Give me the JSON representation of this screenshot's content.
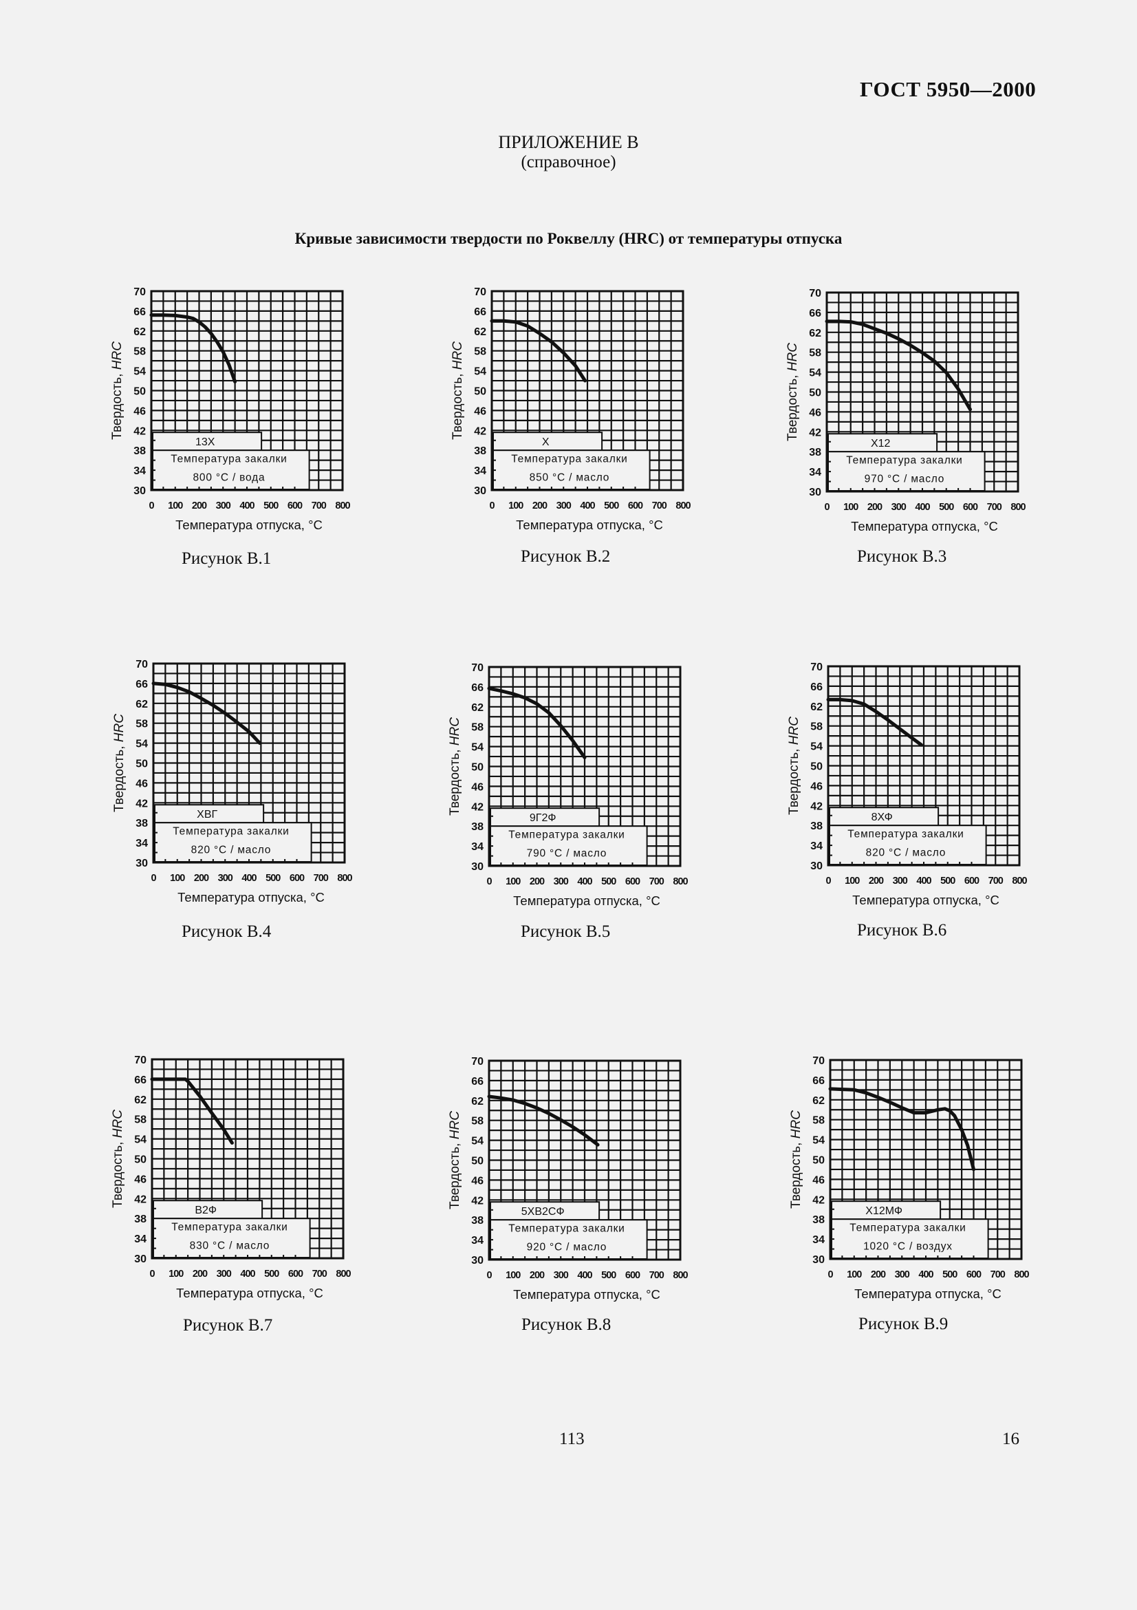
{
  "header": {
    "doc_code": "ГОСТ 5950—2000",
    "appendix_title": "ПРИЛОЖЕНИЕ В",
    "appendix_subtitle": "(справочное)",
    "main_title": "Кривые зависимости твердости по Роквеллу (HRC) от температуры отпуска"
  },
  "footer": {
    "page_number": "113",
    "sheet_number": "16"
  },
  "axes": {
    "ylabel_prefix": "Твердость, ",
    "ylabel_unit": "HRC",
    "xlabel": "Температура отпуска, °C",
    "quench_label": "Температура закалки",
    "yticks": [
      30,
      34,
      38,
      42,
      46,
      50,
      54,
      58,
      62,
      66,
      70
    ],
    "xticks": [
      0,
      100,
      200,
      300,
      400,
      500,
      600,
      700,
      800
    ]
  },
  "chart_data": [
    {
      "type": "line",
      "figure": "Рисунок В.1",
      "title": "13X",
      "steel": "13X",
      "quench": "800 °C / вода",
      "xlabel": "Температура отпуска, °C",
      "ylabel": "Твердость, HRC",
      "xlim": [
        0,
        800
      ],
      "ylim": [
        30,
        70
      ],
      "grid": true,
      "x": [
        0,
        50,
        100,
        150,
        175,
        200,
        225,
        250,
        275,
        300,
        325,
        350
      ],
      "y": [
        65.2,
        65.2,
        65.1,
        64.8,
        64.5,
        63.8,
        62.8,
        61.5,
        59.8,
        57.8,
        55.2,
        51.8
      ]
    },
    {
      "type": "line",
      "figure": "Рисунок В.2",
      "title": "X",
      "steel": "X",
      "quench": "850 °C / масло",
      "xlabel": "Температура отпуска, °C",
      "ylabel": "Твердость, HRC",
      "xlim": [
        0,
        800
      ],
      "ylim": [
        30,
        70
      ],
      "grid": true,
      "x": [
        0,
        50,
        100,
        150,
        200,
        250,
        300,
        350,
        390
      ],
      "y": [
        64,
        64,
        63.8,
        63,
        61.5,
        59.8,
        57.6,
        55,
        52
      ]
    },
    {
      "type": "line",
      "figure": "Рисунок В.3",
      "title": "X12",
      "steel": "X12",
      "quench": "970 °C / масло",
      "xlabel": "Температура отпуска, °C",
      "ylabel": "Твердость, HRC",
      "xlim": [
        0,
        800
      ],
      "ylim": [
        30,
        70
      ],
      "grid": true,
      "x": [
        0,
        50,
        100,
        150,
        200,
        250,
        300,
        350,
        400,
        450,
        500,
        550,
        600
      ],
      "y": [
        64.2,
        64.2,
        64.1,
        63.6,
        62.7,
        61.8,
        60.7,
        59.4,
        57.9,
        56.2,
        53.9,
        50.6,
        46.5
      ]
    },
    {
      "type": "line",
      "figure": "Рисунок В.4",
      "title": "ХВГ",
      "steel": "ХВГ",
      "quench": "820 °C / масло",
      "xlabel": "Температура отпуска, °C",
      "ylabel": "Твердость, HRC",
      "xlim": [
        0,
        800
      ],
      "ylim": [
        30,
        70
      ],
      "grid": true,
      "x": [
        0,
        50,
        100,
        150,
        200,
        250,
        300,
        350,
        400,
        445
      ],
      "y": [
        66,
        65.8,
        65.2,
        64.3,
        63,
        61.6,
        60,
        58.2,
        56.3,
        54
      ]
    },
    {
      "type": "line",
      "figure": "Рисунок В.5",
      "title": "9Г2Ф",
      "steel": "9Г2Ф",
      "quench": "790 °C / масло",
      "xlabel": "Температура отпуска, °C",
      "ylabel": "Твердость, HRC",
      "xlim": [
        0,
        800
      ],
      "ylim": [
        30,
        70
      ],
      "grid": true,
      "x": [
        0,
        50,
        100,
        150,
        200,
        250,
        300,
        350,
        400
      ],
      "y": [
        65.7,
        65.2,
        64.6,
        63.8,
        62.6,
        60.8,
        58.2,
        55.2,
        51.8
      ]
    },
    {
      "type": "line",
      "figure": "Рисунок В.6",
      "title": "8ХФ",
      "steel": "8ХФ",
      "quench": "820 °C / масло",
      "xlabel": "Температура отпуска, °C",
      "ylabel": "Твердость, HRC",
      "xlim": [
        0,
        800
      ],
      "ylim": [
        30,
        70
      ],
      "grid": true,
      "x": [
        0,
        50,
        100,
        150,
        200,
        250,
        300,
        350,
        390
      ],
      "y": [
        63.3,
        63.3,
        63.1,
        62.4,
        60.9,
        59.2,
        57.4,
        55.6,
        54.2
      ]
    },
    {
      "type": "line",
      "figure": "Рисунок В.7",
      "title": "В2Ф",
      "steel": "В2Ф",
      "quench": "830 °C / масло",
      "xlabel": "Температура отпуска, °C",
      "ylabel": "Твердость, HRC",
      "xlim": [
        0,
        800
      ],
      "ylim": [
        30,
        70
      ],
      "grid": true,
      "x": [
        0,
        140,
        150,
        200,
        250,
        300,
        335
      ],
      "y": [
        66,
        66,
        65.6,
        62.6,
        59.2,
        55.9,
        53.2
      ]
    },
    {
      "type": "line",
      "figure": "Рисунок В.8",
      "title": "5ХВ2СФ",
      "steel": "5ХВ2СФ",
      "quench": "920 °C / масло",
      "xlabel": "Температура отпуска, °C",
      "ylabel": "Твердость, HRC",
      "xlim": [
        0,
        800
      ],
      "ylim": [
        30,
        70
      ],
      "grid": true,
      "x": [
        0,
        50,
        100,
        150,
        200,
        250,
        300,
        350,
        400,
        455
      ],
      "y": [
        62.8,
        62.5,
        62.1,
        61.4,
        60.5,
        59.4,
        58.1,
        56.7,
        55.1,
        53.1
      ]
    },
    {
      "type": "line",
      "figure": "Рисунок В.9",
      "title": "X12МФ",
      "steel": "X12МФ",
      "quench": "1020 °C / воздух",
      "xlabel": "Температура отпуска, °C",
      "ylabel": "Твердость, HRC",
      "xlim": [
        0,
        800
      ],
      "ylim": [
        30,
        70
      ],
      "grid": true,
      "x": [
        0,
        50,
        100,
        150,
        200,
        250,
        300,
        350,
        400,
        450,
        480,
        500,
        520,
        550,
        575,
        600
      ],
      "y": [
        64.2,
        64.1,
        64,
        63.4,
        62.5,
        61.5,
        60.4,
        59.4,
        59.4,
        60,
        60.2,
        59.8,
        58.8,
        56,
        52.8,
        48
      ]
    }
  ],
  "figures": [
    {
      "caption": "Рисунок В.1"
    },
    {
      "caption": "Рисунок В.2"
    },
    {
      "caption": "Рисунок В.3"
    },
    {
      "caption": "Рисунок В.4"
    },
    {
      "caption": "Рисунок В.5"
    },
    {
      "caption": "Рисунок В.6"
    },
    {
      "caption": "Рисунок В.7"
    },
    {
      "caption": "Рисунок В.8"
    },
    {
      "caption": "Рисунок В.9"
    }
  ],
  "style": {
    "background": "#f2f2f2",
    "ink": "#111111"
  }
}
